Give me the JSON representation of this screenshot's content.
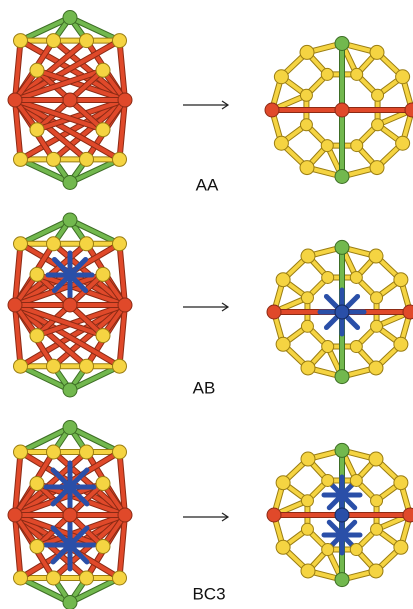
{
  "rows": [
    {
      "label": "AA"
    },
    {
      "label": "AB"
    },
    {
      "label": "BC3"
    }
  ]
}
